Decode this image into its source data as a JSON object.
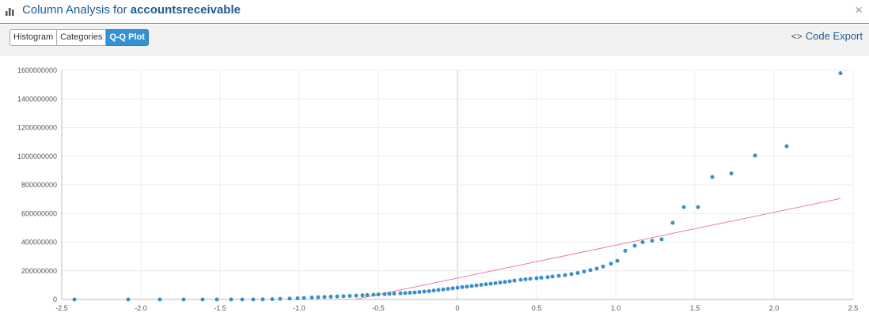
{
  "header": {
    "prefix": "Column Analysis for",
    "column": "accountsreceivable",
    "icon": "bar-chart-icon",
    "close_label": "×"
  },
  "toolbar": {
    "tabs": [
      {
        "label": "Histogram",
        "active": false
      },
      {
        "label": "Categories",
        "active": false
      },
      {
        "label": "Q-Q Plot",
        "active": true
      }
    ],
    "code_export_icon": "<>",
    "code_export_label": "Code Export"
  },
  "colors": {
    "points": "#3a8fc7",
    "reference_line": "#f07aa0",
    "accent": "#1f5b8f"
  },
  "chart_data": {
    "type": "scatter",
    "xlim": [
      -2.5,
      2.5
    ],
    "ylim": [
      0,
      1600000000
    ],
    "x_ticks": [
      "-2.5",
      "-2.0",
      "-1.5",
      "-1.0",
      "-0.5",
      "0",
      "0.5",
      "1.0",
      "1.5",
      "2.0",
      "2.5"
    ],
    "y_ticks": [
      "0",
      "200000000",
      "400000000",
      "600000000",
      "800000000",
      "1000000000",
      "1200000000",
      "1400000000",
      "1600000000"
    ],
    "grid": true,
    "reference_line": {
      "x": [
        -0.65,
        2.42
      ],
      "y": [
        0,
        705000000
      ]
    },
    "points": [
      [
        -2.42,
        0
      ],
      [
        -2.08,
        0
      ],
      [
        -1.88,
        0
      ],
      [
        -1.73,
        0
      ],
      [
        -1.61,
        0
      ],
      [
        -1.52,
        0
      ],
      [
        -1.43,
        0
      ],
      [
        -1.36,
        0
      ],
      [
        -1.29,
        0
      ],
      [
        -1.23,
        1000000
      ],
      [
        -1.17,
        2000000
      ],
      [
        -1.12,
        4000000
      ],
      [
        -1.06,
        6000000
      ],
      [
        -1.01,
        8000000
      ],
      [
        -0.97,
        10000000
      ],
      [
        -0.92,
        13000000
      ],
      [
        -0.88,
        15000000
      ],
      [
        -0.84,
        17000000
      ],
      [
        -0.8,
        19000000
      ],
      [
        -0.76,
        21000000
      ],
      [
        -0.72,
        23000000
      ],
      [
        -0.68,
        25000000
      ],
      [
        -0.64,
        27000000
      ],
      [
        -0.6,
        29000000
      ],
      [
        -0.57,
        31000000
      ],
      [
        -0.53,
        33000000
      ],
      [
        -0.5,
        35000000
      ],
      [
        -0.46,
        37000000
      ],
      [
        -0.43,
        39000000
      ],
      [
        -0.4,
        41000000
      ],
      [
        -0.36,
        43000000
      ],
      [
        -0.33,
        45000000
      ],
      [
        -0.3,
        47000000
      ],
      [
        -0.27,
        49000000
      ],
      [
        -0.24,
        52000000
      ],
      [
        -0.21,
        55000000
      ],
      [
        -0.18,
        58000000
      ],
      [
        -0.15,
        62000000
      ],
      [
        -0.12,
        66000000
      ],
      [
        -0.09,
        70000000
      ],
      [
        -0.06,
        74000000
      ],
      [
        -0.03,
        78000000
      ],
      [
        0.0,
        82000000
      ],
      [
        0.03,
        86000000
      ],
      [
        0.06,
        90000000
      ],
      [
        0.09,
        94000000
      ],
      [
        0.12,
        98000000
      ],
      [
        0.15,
        102000000
      ],
      [
        0.18,
        106000000
      ],
      [
        0.21,
        110000000
      ],
      [
        0.24,
        114000000
      ],
      [
        0.27,
        118000000
      ],
      [
        0.3,
        122000000
      ],
      [
        0.33,
        127000000
      ],
      [
        0.36,
        132000000
      ],
      [
        0.4,
        137000000
      ],
      [
        0.43,
        141000000
      ],
      [
        0.46,
        144000000
      ],
      [
        0.5,
        148000000
      ],
      [
        0.53,
        152000000
      ],
      [
        0.57,
        156000000
      ],
      [
        0.6,
        160000000
      ],
      [
        0.64,
        165000000
      ],
      [
        0.68,
        170000000
      ],
      [
        0.72,
        177000000
      ],
      [
        0.76,
        185000000
      ],
      [
        0.8,
        195000000
      ],
      [
        0.84,
        205000000
      ],
      [
        0.88,
        215000000
      ],
      [
        0.92,
        230000000
      ],
      [
        0.97,
        250000000
      ],
      [
        1.01,
        270000000
      ],
      [
        1.06,
        340000000
      ],
      [
        1.12,
        375000000
      ],
      [
        1.17,
        400000000
      ],
      [
        1.23,
        410000000
      ],
      [
        1.29,
        420000000
      ],
      [
        1.36,
        535000000
      ],
      [
        1.43,
        645000000
      ],
      [
        1.52,
        645000000
      ],
      [
        1.61,
        855000000
      ],
      [
        1.73,
        880000000
      ],
      [
        1.88,
        1005000000
      ],
      [
        2.08,
        1070000000
      ],
      [
        2.42,
        1580000000
      ]
    ]
  }
}
